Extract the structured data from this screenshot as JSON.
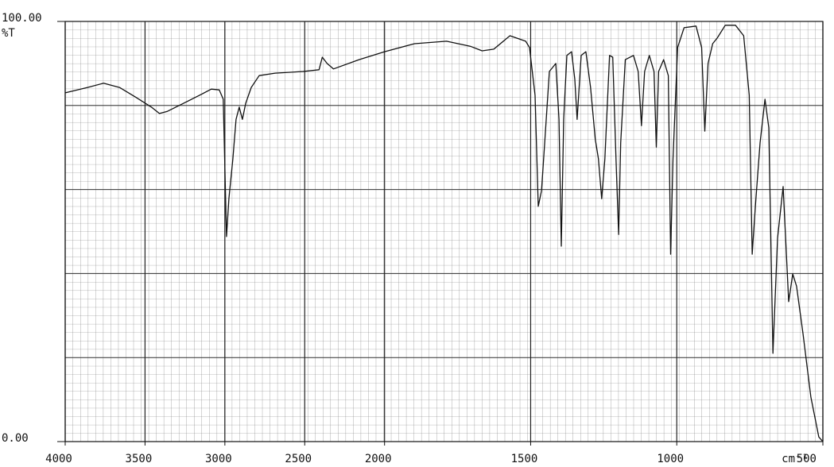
{
  "chart_data": {
    "type": "line",
    "y_label": "%T",
    "x_label": "cm⁻¹",
    "xlim": [
      4000,
      500
    ],
    "ylim": [
      0,
      100
    ],
    "xticks": [
      4000,
      3500,
      3000,
      2500,
      2000,
      1500,
      1000,
      500
    ],
    "yticks": [
      {
        "value": 0,
        "label": "0.00"
      },
      {
        "value": 100,
        "label": "100.00"
      }
    ],
    "grid": true,
    "x": [
      4000,
      3860,
      3760,
      3660,
      3560,
      3460,
      3410,
      3360,
      3260,
      3160,
      3085,
      3035,
      3010,
      2990,
      2975,
      2960,
      2950,
      2930,
      2910,
      2890,
      2870,
      2835,
      2785,
      2685,
      2510,
      2410,
      2390,
      2360,
      2320,
      2160,
      2000,
      1897,
      1788,
      1707,
      1666,
      1626,
      1571,
      1517,
      1504,
      1485,
      1474,
      1463,
      1452,
      1436,
      1414,
      1403,
      1395,
      1387,
      1376,
      1360,
      1349,
      1341,
      1327,
      1311,
      1295,
      1279,
      1268,
      1257,
      1246,
      1230,
      1219,
      1208,
      1199,
      1192,
      1176,
      1148,
      1132,
      1121,
      1110,
      1094,
      1078,
      1070,
      1062,
      1045,
      1029,
      1021,
      1013,
      997,
      975,
      934,
      915,
      904,
      893,
      877,
      861,
      834,
      799,
      771,
      752,
      742,
      731,
      715,
      698,
      685,
      671,
      655,
      636,
      617,
      603,
      590,
      568,
      541,
      514,
      500
    ],
    "series": [
      {
        "name": "%T",
        "color": "#111111",
        "values": [
          83.0,
          84.3,
          85.3,
          84.3,
          82.0,
          79.6,
          78.1,
          78.6,
          80.5,
          82.4,
          83.9,
          83.7,
          81.5,
          48.8,
          57.8,
          63.5,
          67.3,
          76.7,
          79.6,
          76.7,
          80.5,
          84.3,
          87.1,
          87.7,
          88.1,
          88.5,
          91.5,
          90.0,
          88.7,
          90.9,
          92.8,
          94.7,
          95.3,
          94.1,
          93.0,
          93.4,
          96.6,
          95.3,
          93.8,
          82.4,
          56.0,
          59.7,
          71.1,
          88.1,
          90.0,
          76.7,
          46.5,
          76.7,
          91.9,
          92.8,
          86.2,
          76.7,
          91.9,
          92.8,
          84.3,
          72.0,
          67.3,
          57.8,
          67.3,
          91.9,
          91.5,
          67.3,
          49.3,
          71.1,
          90.9,
          91.9,
          88.1,
          75.2,
          88.1,
          91.9,
          88.1,
          70.1,
          88.1,
          90.9,
          87.1,
          44.6,
          67.3,
          93.8,
          98.5,
          98.9,
          93.8,
          73.9,
          90.0,
          94.7,
          96.1,
          99.1,
          99.1,
          96.6,
          82.4,
          44.6,
          56.0,
          71.1,
          81.5,
          74.7,
          21.0,
          48.4,
          60.7,
          33.3,
          39.9,
          37.0,
          25.7,
          10.6,
          1.1,
          0.0
        ]
      }
    ]
  }
}
